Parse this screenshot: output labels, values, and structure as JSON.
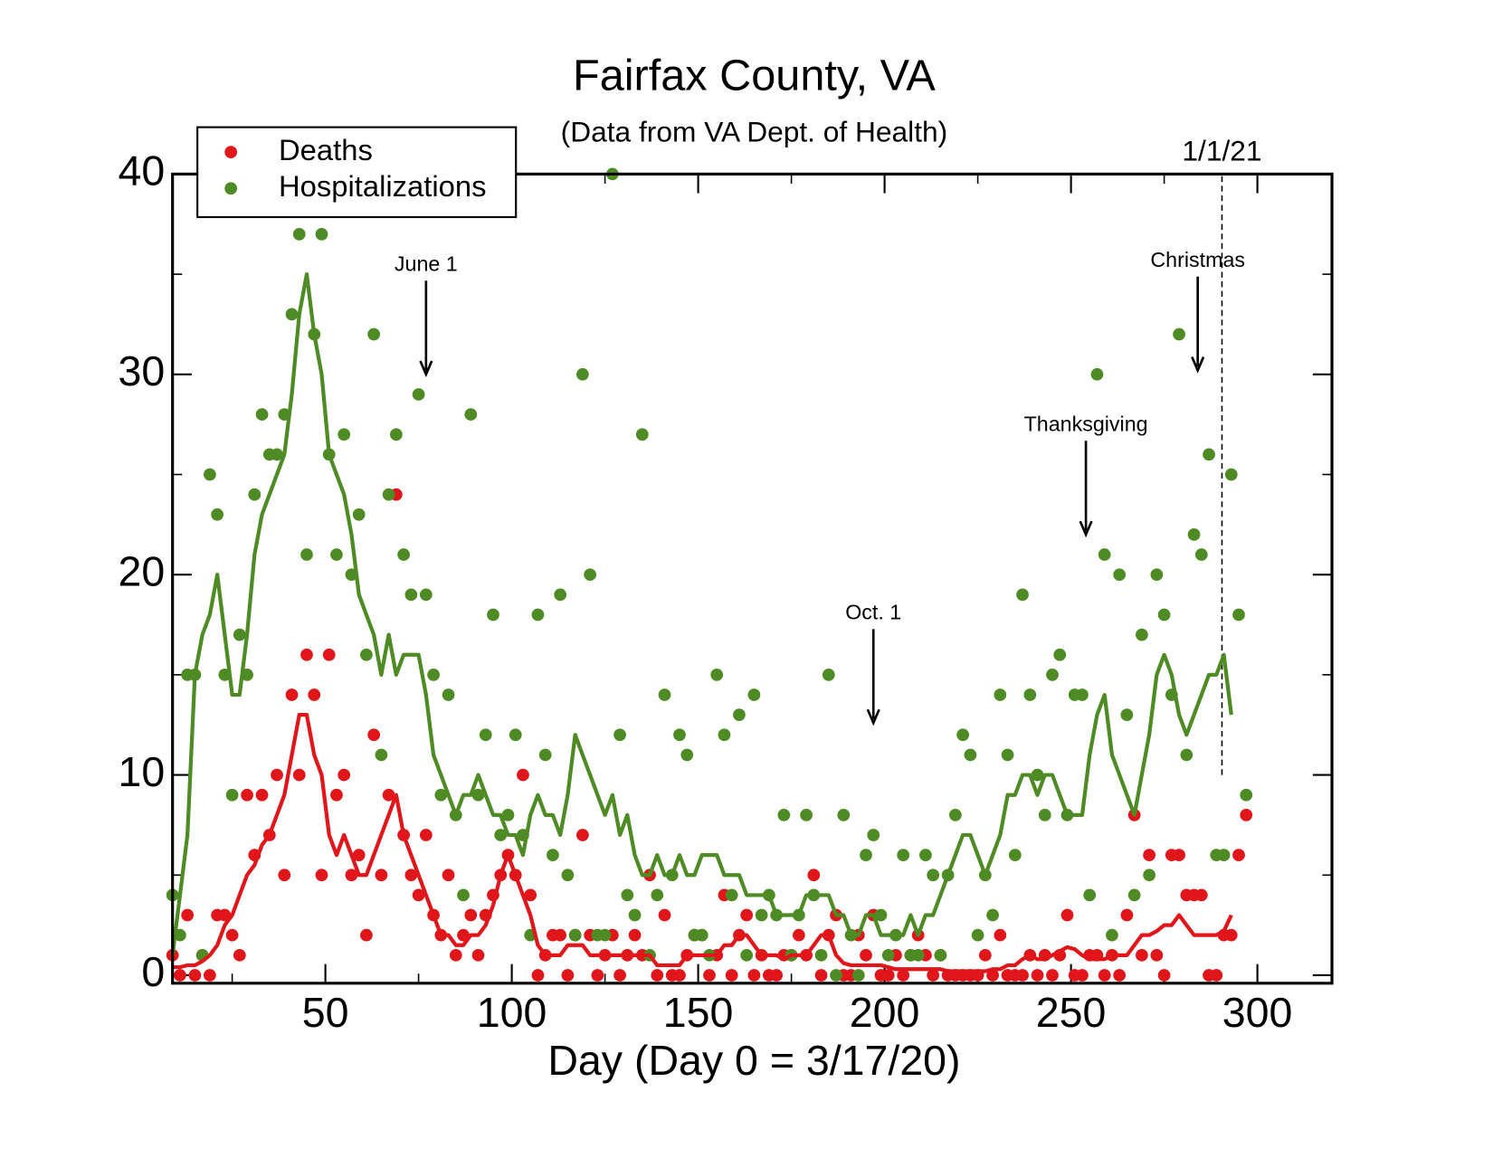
{
  "chart_data": {
    "type": "scatter",
    "title": "Fairfax County, VA",
    "subtitle": "(Data from VA Dept. of Health)",
    "xlabel": "Day (Day 0 = 3/17/20)",
    "x": [
      9,
      11,
      13,
      15,
      17,
      19,
      21,
      23,
      25,
      27,
      29,
      31,
      33,
      35,
      37,
      39,
      41,
      43,
      45,
      47,
      49,
      51,
      53,
      55,
      57,
      59,
      61,
      63,
      65,
      67,
      69,
      71,
      73,
      75,
      77,
      79,
      81,
      83,
      85,
      87,
      89,
      91,
      93,
      95,
      97,
      99,
      101,
      103,
      105,
      107,
      109,
      111,
      113,
      115,
      117,
      119,
      121,
      123,
      125,
      127,
      129,
      131,
      133,
      135,
      137,
      139,
      141,
      143,
      145,
      147,
      149,
      151,
      153,
      155,
      157,
      159,
      161,
      163,
      165,
      167,
      169,
      171,
      173,
      175,
      177,
      179,
      181,
      183,
      185,
      187,
      189,
      191,
      193,
      195,
      197,
      199,
      201,
      203,
      205,
      207,
      209,
      211,
      213,
      215,
      217,
      219,
      221,
      223,
      225,
      227,
      229,
      231,
      233,
      235,
      237,
      239,
      241,
      243,
      245,
      247,
      249,
      251,
      253,
      255,
      257,
      259,
      261,
      263,
      265,
      267,
      269,
      271,
      273,
      275,
      277,
      279,
      281,
      283,
      285,
      287,
      289,
      291,
      293,
      295,
      297
    ],
    "series": [
      {
        "name": "Deaths",
        "color": "#e0161b",
        "values": [
          1,
          0,
          3,
          0,
          1,
          0,
          3,
          3,
          2,
          1,
          9,
          6,
          9,
          7,
          10,
          5,
          14,
          10,
          16,
          14,
          5,
          16,
          9,
          10,
          5,
          6,
          2,
          12,
          5,
          9,
          24,
          7,
          5,
          4,
          7,
          3,
          2,
          5,
          1,
          2,
          3,
          1,
          3,
          4,
          5,
          6,
          5,
          10,
          4,
          0,
          1,
          2,
          2,
          0,
          2,
          7,
          2,
          0,
          1,
          2,
          0,
          1,
          2,
          1,
          5,
          0,
          3,
          0,
          0,
          1,
          2,
          2,
          0,
          1,
          4,
          0,
          2,
          3,
          0,
          1,
          0,
          0,
          1,
          1,
          2,
          1,
          5,
          0,
          2,
          3,
          0,
          0,
          2,
          1,
          3,
          0,
          0,
          1,
          0,
          1,
          2,
          1,
          0,
          1,
          0,
          0,
          0,
          0,
          0,
          1,
          0,
          2,
          0,
          0,
          0,
          1,
          0,
          1,
          0,
          1,
          3,
          0,
          0,
          1,
          1,
          0,
          1,
          0,
          3,
          8,
          1,
          6,
          1,
          0,
          6,
          6,
          4,
          4,
          4,
          0,
          0,
          2,
          2,
          6,
          8
        ],
        "trend": [
          0.4,
          0.4,
          0.5,
          0.5,
          0.7,
          1,
          1.5,
          2.5,
          3,
          4,
          5,
          5.5,
          6.5,
          7,
          8,
          9,
          11,
          13,
          13,
          11,
          10,
          7,
          6,
          7,
          6,
          5,
          5,
          6,
          7,
          8,
          9,
          7,
          6,
          5,
          4,
          3,
          2,
          2,
          1.5,
          1.5,
          2,
          2,
          2.5,
          3.5,
          5,
          6,
          5,
          4,
          3,
          1.5,
          1,
          1,
          1,
          1.5,
          1.5,
          1.5,
          1,
          1,
          1,
          1,
          1,
          1,
          1,
          1,
          1,
          0.5,
          0.5,
          0.5,
          0.5,
          1,
          1,
          1,
          1,
          1,
          1.5,
          1.5,
          2,
          2,
          1.5,
          1,
          1,
          1,
          0.8,
          1,
          1,
          1,
          1.5,
          2,
          2,
          1,
          0.6,
          0.5,
          0.5,
          0.5,
          0.5,
          0.5,
          0.4,
          0.3,
          0.3,
          0.3,
          0.3,
          0.3,
          0.3,
          0.3,
          0.2,
          0.2,
          0.2,
          0.2,
          0.2,
          0.2,
          0.3,
          0.3,
          0.5,
          0.5,
          0.8,
          1,
          0.8,
          0.8,
          1,
          1.2,
          1.4,
          1.3,
          1,
          0.8,
          0.8,
          0.8,
          1,
          1,
          1,
          1.5,
          2,
          2,
          2.2,
          2.5,
          2.5,
          3,
          2.5,
          2,
          2,
          2,
          2,
          2.2,
          3,
          null,
          null
        ]
      },
      {
        "name": "Hospitalizations",
        "color": "#4e8b24",
        "values": [
          4,
          2,
          15,
          15,
          1,
          25,
          23,
          15,
          9,
          17,
          15,
          24,
          28,
          26,
          26,
          28,
          33,
          37,
          21,
          32,
          37,
          26,
          21,
          27,
          20,
          23,
          16,
          32,
          11,
          24,
          27,
          21,
          19,
          29,
          19,
          15,
          9,
          14,
          8,
          4,
          28,
          9,
          12,
          18,
          7,
          8,
          12,
          7,
          2,
          18,
          11,
          6,
          19,
          5,
          2,
          30,
          20,
          2,
          2,
          40,
          12,
          4,
          3,
          27,
          1,
          4,
          14,
          5,
          12,
          11,
          2,
          2,
          1,
          15,
          12,
          4,
          13,
          1,
          14,
          3,
          4,
          3,
          8,
          1,
          3,
          8,
          4,
          1,
          15,
          0,
          8,
          2,
          0,
          6,
          7,
          3,
          1,
          2,
          6,
          1,
          1,
          6,
          5,
          1,
          5,
          8,
          12,
          11,
          2,
          5,
          3,
          14,
          11,
          6,
          19,
          14,
          10,
          8,
          15,
          16,
          8,
          14,
          14,
          4,
          30,
          21,
          2,
          20,
          13,
          4,
          17,
          5,
          20,
          18,
          14,
          32,
          11,
          22,
          21,
          26,
          6,
          6,
          25,
          18,
          9
        ],
        "trend": [
          1,
          4,
          7,
          15,
          17,
          18,
          20,
          17,
          14,
          14,
          17,
          21,
          23,
          24,
          25,
          26,
          29,
          33,
          35,
          32,
          30,
          26,
          25,
          24,
          22,
          19,
          18,
          17,
          15,
          17,
          15,
          16,
          16,
          16,
          14,
          11,
          10,
          9,
          8,
          9,
          9,
          10,
          9,
          8,
          8,
          7,
          7,
          6,
          8,
          9,
          8,
          8,
          7,
          9,
          12,
          11,
          10,
          9,
          8,
          9,
          7,
          8,
          6,
          5,
          5,
          6,
          5,
          5,
          6,
          5,
          5,
          6,
          6,
          6,
          5,
          5,
          5,
          4,
          4,
          4,
          4,
          3,
          3,
          3,
          3,
          4,
          4,
          4,
          4,
          3,
          3,
          2,
          2,
          3,
          3,
          2,
          2,
          2,
          2,
          3,
          2,
          3,
          3,
          4,
          5,
          6,
          7,
          7,
          6,
          5,
          6,
          7,
          9,
          9,
          10,
          10,
          9,
          10,
          10,
          9,
          8,
          8,
          8,
          11,
          13,
          14,
          11,
          10,
          9,
          8,
          10,
          12,
          15,
          16,
          15,
          13,
          12,
          13,
          14,
          15,
          15,
          16,
          13,
          null,
          null
        ]
      }
    ],
    "xlim": [
      9,
      320
    ],
    "ylim": [
      -0.4,
      40
    ],
    "xticks": [
      50,
      100,
      150,
      200,
      250,
      300
    ],
    "yticks": [
      0,
      10,
      20,
      30,
      40
    ],
    "xminorticks": [
      25,
      75,
      125,
      175,
      225,
      275
    ],
    "yminorticks": [
      5,
      15,
      25,
      35
    ],
    "legend": "upper left",
    "annotations": [
      {
        "text": "June 1",
        "x": 77,
        "y": 30
      },
      {
        "text": "Oct. 1",
        "x": 197,
        "y": 12.6
      },
      {
        "text": "Thanksgiving",
        "x": 254,
        "y": 22
      },
      {
        "text": "Christmas",
        "x": 284,
        "y": 30.2
      }
    ],
    "marker": {
      "text": "1/1/21",
      "x": 290.5,
      "y": 10
    }
  }
}
